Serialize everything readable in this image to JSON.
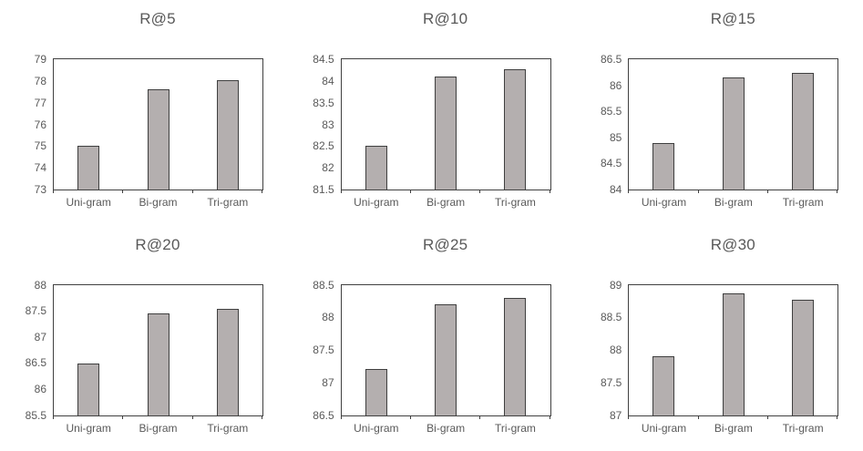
{
  "figure": {
    "background": "#ffffff",
    "bar_fill": "#b4afaf",
    "bar_border": "#3f3f3f",
    "axis_color": "#404040",
    "text_color": "#595959"
  },
  "chart_data": [
    {
      "type": "bar",
      "title": "R@5",
      "categories": [
        "Uni-gram",
        "Bi-gram",
        "Tri-gram"
      ],
      "values": [
        75.0,
        77.6,
        78.05
      ],
      "xlabel": "",
      "ylabel": "",
      "ylim": [
        73,
        79
      ],
      "ytick_step": 1,
      "grid": false,
      "legend": "none"
    },
    {
      "type": "bar",
      "title": "R@10",
      "categories": [
        "Uni-gram",
        "Bi-gram",
        "Tri-gram"
      ],
      "values": [
        82.5,
        84.1,
        84.28
      ],
      "xlabel": "",
      "ylabel": "",
      "ylim": [
        81.5,
        84.5
      ],
      "ytick_step": 0.5,
      "grid": false,
      "legend": "none"
    },
    {
      "type": "bar",
      "title": "R@15",
      "categories": [
        "Uni-gram",
        "Bi-gram",
        "Tri-gram"
      ],
      "values": [
        84.9,
        86.15,
        86.23
      ],
      "xlabel": "",
      "ylabel": "",
      "ylim": [
        84,
        86.5
      ],
      "ytick_step": 0.5,
      "grid": false,
      "legend": "none"
    },
    {
      "type": "bar",
      "title": "R@20",
      "categories": [
        "Uni-gram",
        "Bi-gram",
        "Tri-gram"
      ],
      "values": [
        86.48,
        87.45,
        87.53
      ],
      "xlabel": "",
      "ylabel": "",
      "ylim": [
        85.5,
        88
      ],
      "ytick_step": 0.5,
      "grid": false,
      "legend": "none"
    },
    {
      "type": "bar",
      "title": "R@25",
      "categories": [
        "Uni-gram",
        "Bi-gram",
        "Tri-gram"
      ],
      "values": [
        87.2,
        88.2,
        88.3
      ],
      "xlabel": "",
      "ylabel": "",
      "ylim": [
        86.5,
        88.5
      ],
      "ytick_step": 0.5,
      "grid": false,
      "legend": "none"
    },
    {
      "type": "bar",
      "title": "R@30",
      "categories": [
        "Uni-gram",
        "Bi-gram",
        "Tri-gram"
      ],
      "values": [
        87.9,
        88.87,
        88.77
      ],
      "xlabel": "",
      "ylabel": "",
      "ylim": [
        87,
        89
      ],
      "ytick_step": 0.5,
      "grid": false,
      "legend": "none"
    }
  ]
}
